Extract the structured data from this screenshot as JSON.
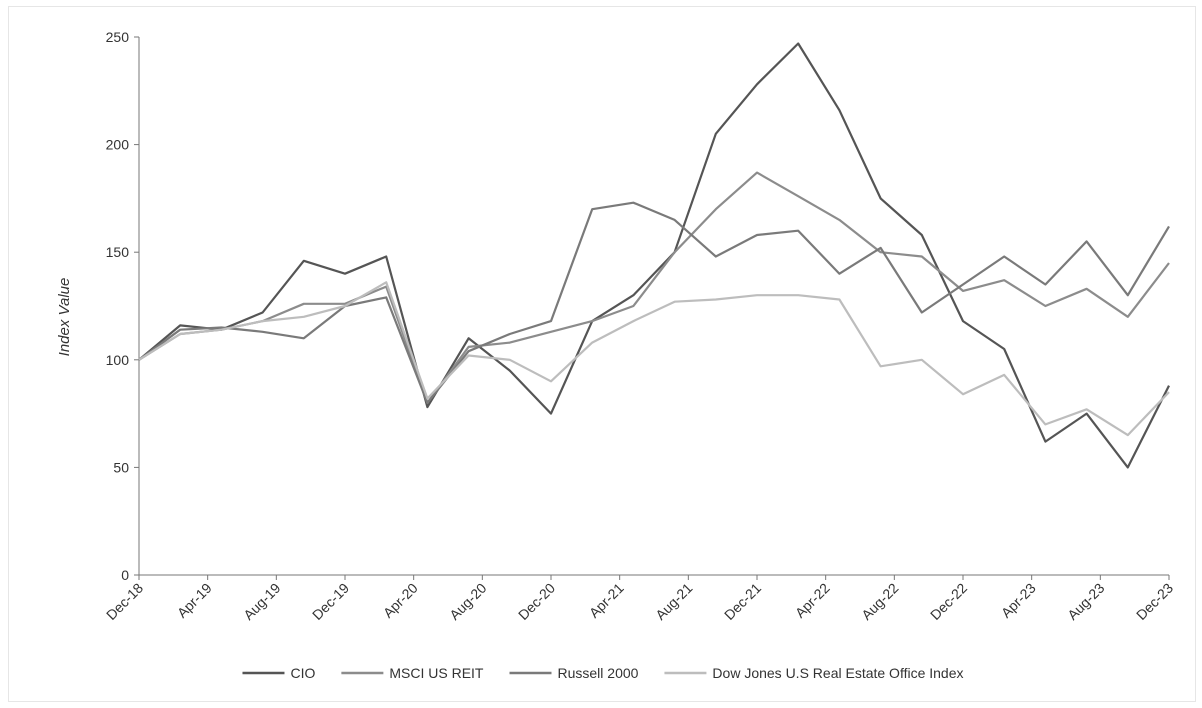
{
  "chart_data": {
    "type": "line",
    "title": "",
    "xlabel": "",
    "ylabel": "Index Value",
    "ylim": [
      0,
      250
    ],
    "yticks": [
      0,
      50,
      100,
      150,
      200,
      250
    ],
    "x_tick_labels": [
      "Dec-18",
      "Apr-19",
      "Aug-19",
      "Dec-19",
      "Apr-20",
      "Aug-20",
      "Dec-20",
      "Apr-21",
      "Aug-21",
      "Dec-21",
      "Apr-22",
      "Aug-22",
      "Dec-22",
      "Apr-23",
      "Aug-23",
      "Dec-23"
    ],
    "grid": false,
    "legend_position": "bottom",
    "series": [
      {
        "name": "CIO",
        "color": "#555555",
        "values": [
          100,
          116,
          114,
          122,
          146,
          140,
          148,
          78,
          110,
          95,
          75,
          118,
          130,
          150,
          205,
          228,
          247,
          216,
          175,
          158,
          118,
          105,
          62,
          75,
          50,
          88
        ]
      },
      {
        "name": "MSCI US REIT",
        "color": "#8c8c8c",
        "values": [
          100,
          112,
          114,
          118,
          126,
          126,
          134,
          80,
          106,
          108,
          113,
          118,
          125,
          150,
          170,
          187,
          176,
          165,
          150,
          148,
          132,
          137,
          125,
          133,
          120,
          145
        ]
      },
      {
        "name": "Russell 2000",
        "color": "#7a7a7a",
        "values": [
          100,
          114,
          115,
          113,
          110,
          125,
          129,
          80,
          104,
          112,
          118,
          170,
          173,
          165,
          148,
          158,
          160,
          140,
          152,
          122,
          135,
          148,
          135,
          155,
          130,
          162
        ]
      },
      {
        "name": "Dow Jones U.S Real Estate Office Index",
        "color": "#bdbdbd",
        "values": [
          100,
          112,
          114,
          118,
          120,
          125,
          136,
          82,
          102,
          100,
          90,
          108,
          118,
          127,
          128,
          130,
          130,
          128,
          97,
          100,
          84,
          93,
          70,
          77,
          65,
          85
        ]
      }
    ]
  }
}
